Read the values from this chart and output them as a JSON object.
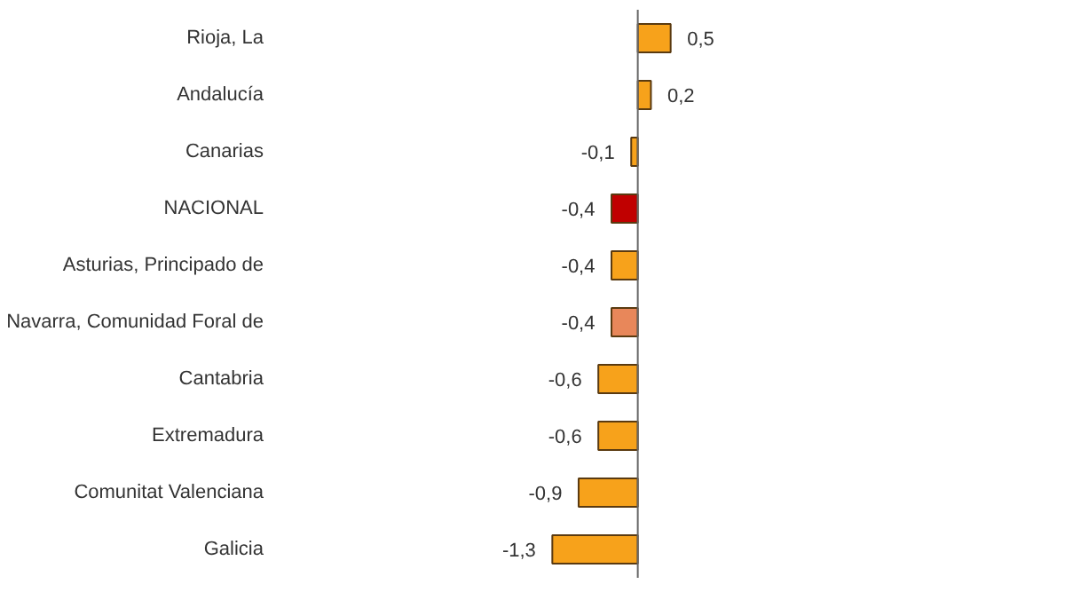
{
  "chart_data": {
    "type": "bar",
    "orientation": "horizontal",
    "categories": [
      "Rioja, La",
      "Andalucía",
      "Canarias",
      "NACIONAL",
      "Asturias, Principado de",
      "Navarra, Comunidad Foral de",
      "Cantabria",
      "Extremadura",
      "Comunitat Valenciana",
      "Galicia"
    ],
    "values": [
      0.5,
      0.2,
      -0.1,
      -0.4,
      -0.4,
      -0.4,
      -0.6,
      -0.6,
      -0.9,
      -1.3
    ],
    "colors": [
      "#f7a21b",
      "#f7a21b",
      "#f7a21b",
      "#c00000",
      "#f7a21b",
      "#e8875a",
      "#f7a21b",
      "#f7a21b",
      "#f7a21b",
      "#f7a21b"
    ],
    "value_labels": [
      "0,5",
      "0,2",
      "-0,1",
      "-0,4",
      "-0,4",
      "-0,4",
      "-0,6",
      "-0,6",
      "-0,9",
      "-1,3"
    ],
    "tick_labels": "y"
  }
}
